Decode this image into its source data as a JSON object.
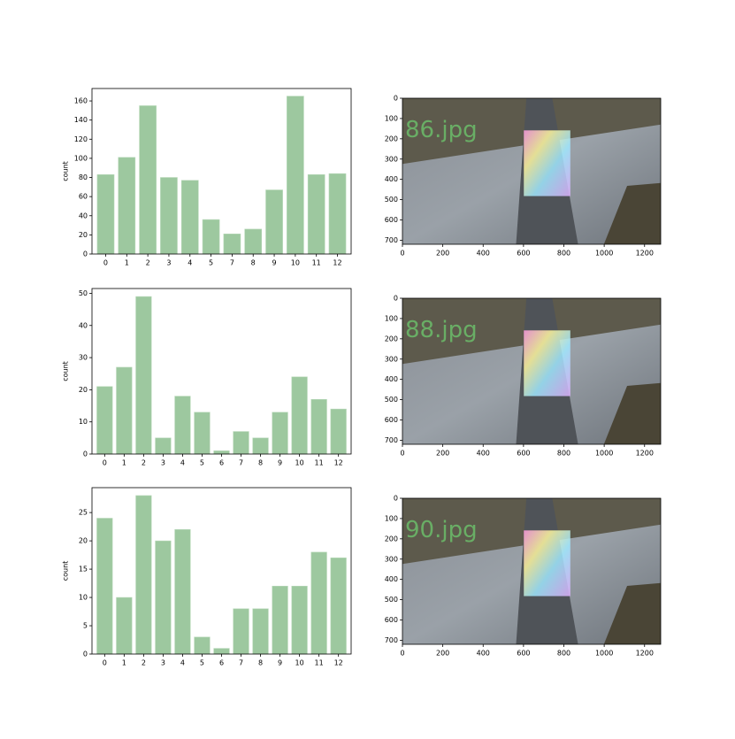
{
  "chart_data": [
    {
      "type": "bar",
      "ylabel": "count",
      "color": "#9dc89f",
      "categories": [
        "0",
        "1",
        "2",
        "3",
        "4",
        "5",
        "7",
        "8",
        "9",
        "10",
        "11",
        "12"
      ],
      "values": [
        83,
        101,
        155,
        80,
        77,
        36,
        21,
        26,
        67,
        165,
        83,
        84
      ],
      "ylim": [
        0,
        173
      ],
      "yticks": [
        0,
        20,
        40,
        60,
        80,
        100,
        120,
        140,
        160
      ]
    },
    {
      "type": "image",
      "label": "86.jpg",
      "xlim": [
        0,
        1280
      ],
      "ylim": [
        720,
        0
      ],
      "xticks": [
        0,
        200,
        400,
        600,
        800,
        1000,
        1200
      ],
      "yticks": [
        0,
        100,
        200,
        300,
        400,
        500,
        600,
        700
      ]
    },
    {
      "type": "bar",
      "ylabel": "count",
      "color": "#9dc89f",
      "categories": [
        "0",
        "1",
        "2",
        "3",
        "4",
        "5",
        "6",
        "7",
        "8",
        "9",
        "10",
        "11",
        "12"
      ],
      "values": [
        21,
        27,
        49,
        5,
        18,
        13,
        1,
        7,
        5,
        13,
        24,
        17,
        14
      ],
      "ylim": [
        0,
        51.5
      ],
      "yticks": [
        0,
        10,
        20,
        30,
        40,
        50
      ]
    },
    {
      "type": "image",
      "label": "88.jpg",
      "xlim": [
        0,
        1280
      ],
      "ylim": [
        720,
        0
      ],
      "xticks": [
        0,
        200,
        400,
        600,
        800,
        1000,
        1200
      ],
      "yticks": [
        0,
        100,
        200,
        300,
        400,
        500,
        600,
        700
      ]
    },
    {
      "type": "bar",
      "ylabel": "count",
      "color": "#9dc89f",
      "categories": [
        "0",
        "1",
        "2",
        "3",
        "4",
        "5",
        "6",
        "7",
        "8",
        "9",
        "10",
        "11",
        "12"
      ],
      "values": [
        24,
        10,
        28,
        20,
        22,
        3,
        1,
        8,
        8,
        12,
        12,
        18,
        17
      ],
      "ylim": [
        0,
        29.4
      ],
      "yticks": [
        0,
        5,
        10,
        15,
        20,
        25
      ]
    },
    {
      "type": "image",
      "label": "90.jpg",
      "xlim": [
        0,
        1280
      ],
      "ylim": [
        720,
        0
      ],
      "xticks": [
        0,
        200,
        400,
        600,
        800,
        1000,
        1200
      ],
      "yticks": [
        0,
        100,
        200,
        300,
        400,
        500,
        600,
        700
      ]
    }
  ]
}
